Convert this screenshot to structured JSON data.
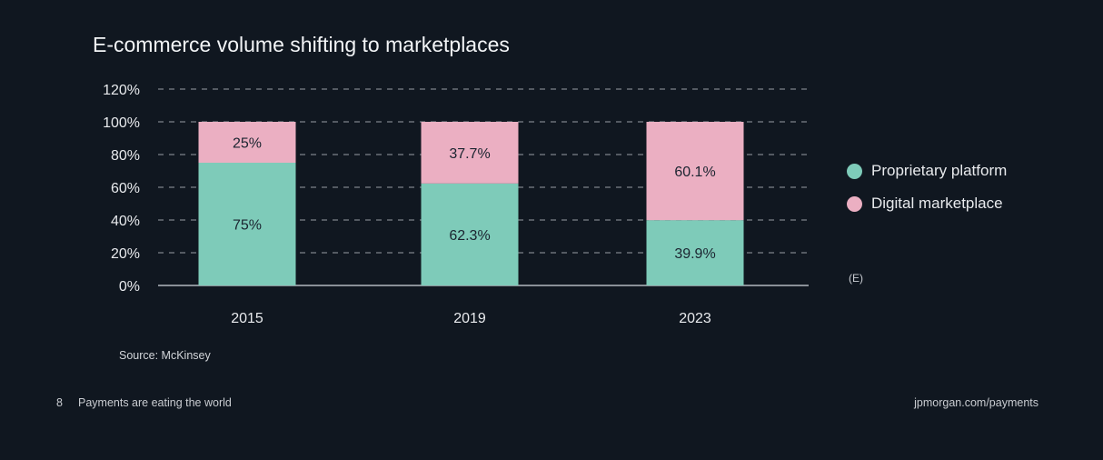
{
  "chart_data": {
    "type": "bar",
    "stacked": true,
    "title": "E-commerce volume shifting to marketplaces",
    "categories": [
      "2015",
      "2019",
      "2023"
    ],
    "series": [
      {
        "name": "Proprietary platform",
        "values": [
          75,
          62.3,
          39.9
        ],
        "labels": [
          "75%",
          "62.3%",
          "39.9%"
        ],
        "color": "#7ecbb9"
      },
      {
        "name": "Digital marketplace",
        "values": [
          25,
          37.7,
          60.1
        ],
        "labels": [
          "25%",
          "37.7%",
          "60.1%"
        ],
        "color": "#ebafc2"
      }
    ],
    "yticks": [
      0,
      20,
      40,
      60,
      80,
      100,
      120
    ],
    "ytick_labels": [
      "0%",
      "20%",
      "40%",
      "60%",
      "80%",
      "100%",
      "120%"
    ],
    "ylim": [
      0,
      120
    ],
    "grid": true,
    "legend_position": "right",
    "xlabel": "",
    "ylabel": ""
  },
  "estimate_note": "(E)",
  "source": "Source: McKinsey",
  "footer": {
    "page_number": "8",
    "text": "Payments are eating the world",
    "url": "jpmorgan.com/payments"
  },
  "colors": {
    "background": "#101720",
    "grid": "#6b7178",
    "axis": "#8a9097"
  }
}
